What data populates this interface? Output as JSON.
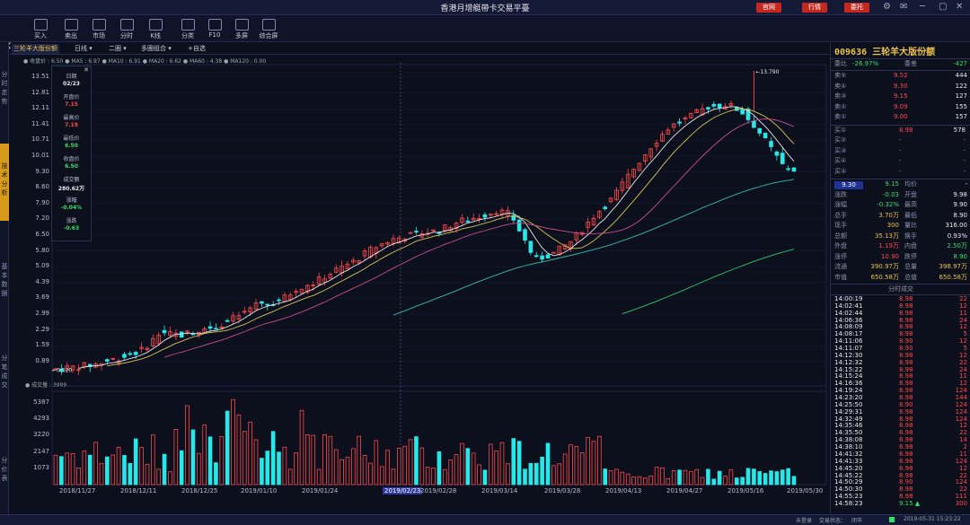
{
  "window": {
    "title": "香港月增艇帶卡交易平臺",
    "btn_website": "官网",
    "btn_market": "行情",
    "btn_trade": "委托"
  },
  "toolbar": [
    {
      "label": "买入",
      "icon": "buy-house-icon"
    },
    {
      "label": "卖出",
      "icon": "sell-house-icon"
    },
    {
      "label": "市场",
      "icon": "market-bag-icon"
    },
    {
      "label": "分时",
      "icon": "timeline-icon"
    },
    {
      "label": "K线",
      "icon": "candlestick-icon"
    },
    {
      "label": "分类",
      "icon": "list-icon"
    },
    {
      "label": "F10",
      "icon": "document-icon"
    },
    {
      "label": "多屏",
      "icon": "multi-screen-icon"
    },
    {
      "label": "综合屏",
      "icon": "grid-icon"
    }
  ],
  "left_nav": [
    "分时走势",
    "技术分析",
    "基本数据",
    "分笔成交",
    "分价表"
  ],
  "tabs": {
    "stock": "三轮羊大版份额",
    "period": "日线",
    "layout": "二圈",
    "multi": "多圈组合",
    "add": "+自选"
  },
  "ma_bar": "● 收盘价 : 6.50 ● MA5 : 6.97 ● MA10 : 6.91 ● MA20 : 6.62 ● MA60 : 4.38 ● MA120 : 0.00",
  "vol_label": "● 成交量 : 3989",
  "price_axis": [
    "13.51",
    "12.81",
    "12.11",
    "11.41",
    "10.71",
    "10.01",
    "9.30",
    "8.60",
    "7.90",
    "7.20",
    "6.50",
    "5.80",
    "5.09",
    "4.39",
    "3.69",
    "2.99",
    "2.29",
    "1.59",
    "0.89"
  ],
  "vol_axis": [
    "5387",
    "4293",
    "3220",
    "2147",
    "1073"
  ],
  "dates": [
    "2018/11/27",
    "2018/12/11",
    "2018/12/25",
    "2019/01/10",
    "2019/01/24",
    "2019/02/23",
    "2019/02/28",
    "2019/03/14",
    "2019/03/28",
    "2019/04/13",
    "2019/04/27",
    "2019/05/16",
    "2019/05/30"
  ],
  "highlight_date": "2019/02/23",
  "high_label": "←13.790",
  "low_label": "←0.520",
  "tooltip": {
    "rows": [
      {
        "k": "日期",
        "v": "02/23",
        "color": "#e8eaf2"
      },
      {
        "k": "开盘价",
        "v": "7.15",
        "color": "#ff4a4a"
      },
      {
        "k": "最高价",
        "v": "7.19",
        "color": "#ff4a4a"
      },
      {
        "k": "最低价",
        "v": "6.50",
        "color": "#33e06a"
      },
      {
        "k": "收盘价",
        "v": "6.50",
        "color": "#33e06a"
      },
      {
        "k": "成交额",
        "v": "280.62万",
        "color": "#e8eaf2"
      },
      {
        "k": "涨幅",
        "v": "-0.04%",
        "color": "#33e06a"
      },
      {
        "k": "涨跌",
        "v": "-0.63",
        "color": "#33e06a"
      }
    ]
  },
  "quote": {
    "code_name": "009636 三轮羊大版份额",
    "ratio_label": "委比",
    "ratio_val": "-26.97%",
    "diff_label": "委差",
    "diff_val": "-427",
    "asks": [
      {
        "l": "卖⑤",
        "p": "9.52",
        "v": "444"
      },
      {
        "l": "卖④",
        "p": "9.30",
        "v": "122"
      },
      {
        "l": "卖③",
        "p": "9.15",
        "v": "127"
      },
      {
        "l": "卖②",
        "p": "9.09",
        "v": "155"
      },
      {
        "l": "卖①",
        "p": "9.00",
        "v": "157"
      }
    ],
    "bids": [
      {
        "l": "买①",
        "p": "8.98",
        "v": "578"
      },
      {
        "l": "买②",
        "p": "-",
        "v": "-"
      },
      {
        "l": "买③",
        "p": "-",
        "v": "-"
      },
      {
        "l": "买④",
        "p": "-",
        "v": "-"
      },
      {
        "l": "买⑤",
        "p": "-",
        "v": "-"
      }
    ],
    "price_box": "9.30",
    "stats": [
      {
        "l1": "",
        "v1": "9.15",
        "c1": "grn",
        "l2": "均价",
        "v2": "-",
        "c2": "wht"
      },
      {
        "l1": "涨跌",
        "v1": "-0.03",
        "c1": "grn",
        "l2": "开盘",
        "v2": "9.98",
        "c2": "wht"
      },
      {
        "l1": "涨幅",
        "v1": "-0.32%",
        "c1": "grn",
        "l2": "最高",
        "v2": "9.90",
        "c2": "wht"
      },
      {
        "l1": "总手",
        "v1": "3.70万",
        "c1": "yel",
        "l2": "最低",
        "v2": "8.90",
        "c2": "wht"
      },
      {
        "l1": "现手",
        "v1": "300",
        "c1": "yel",
        "l2": "量比",
        "v2": "316.00",
        "c2": "wht"
      },
      {
        "l1": "总额",
        "v1": "35.13万",
        "c1": "yel",
        "l2": "换手",
        "v2": "0.93%",
        "c2": "wht"
      },
      {
        "l1": "外盘",
        "v1": "1.19万",
        "c1": "red",
        "l2": "内盘",
        "v2": "2.50万",
        "c2": "grn"
      },
      {
        "l1": "涨停",
        "v1": "10.90",
        "c1": "red",
        "l2": "跌停",
        "v2": "8.90",
        "c2": "grn"
      },
      {
        "l1": "流通",
        "v1": "390.97万",
        "c1": "yel",
        "l2": "总量",
        "v2": "398.97万",
        "c2": "yel"
      },
      {
        "l1": "市值",
        "v1": "650.58万",
        "c1": "yel",
        "l2": "总值",
        "v2": "650.58万",
        "c2": "yel"
      }
    ]
  },
  "ticks_title": "分时成交",
  "ticks": [
    [
      "14:00:19",
      "8.98",
      "22"
    ],
    [
      "14:02:41",
      "8.98",
      "12"
    ],
    [
      "14:02:44",
      "8.98",
      "11"
    ],
    [
      "14:06:36",
      "8.98",
      "24"
    ],
    [
      "14:08:09",
      "8.98",
      "12"
    ],
    [
      "14:08:17",
      "8.98",
      "5"
    ],
    [
      "14:11:06",
      "8.90",
      "12"
    ],
    [
      "14:11:07",
      "8.90",
      "5"
    ],
    [
      "14:12:30",
      "8.98",
      "12"
    ],
    [
      "14:12:32",
      "8.98",
      "22"
    ],
    [
      "14:15:22",
      "8.98",
      "24"
    ],
    [
      "14:15:24",
      "8.98",
      "11"
    ],
    [
      "14:16:36",
      "8.98",
      "12"
    ],
    [
      "14:19:24",
      "8.98",
      "124"
    ],
    [
      "14:23:20",
      "8.98",
      "144"
    ],
    [
      "14:25:50",
      "8.90",
      "124"
    ],
    [
      "14:29:31",
      "8.98",
      "124"
    ],
    [
      "14:32:49",
      "8.98",
      "124"
    ],
    [
      "14:35:46",
      "8.98",
      "12"
    ],
    [
      "14:35:50",
      "8.98",
      "22"
    ],
    [
      "14:38:08",
      "8.98",
      "14"
    ],
    [
      "14:38:10",
      "8.98",
      "2"
    ],
    [
      "14:41:32",
      "8.98",
      "11"
    ],
    [
      "14:41:33",
      "8.98",
      "124"
    ],
    [
      "14:45:20",
      "8.98",
      "12"
    ],
    [
      "14:45:22",
      "8.98",
      "22"
    ],
    [
      "14:50:29",
      "8.90",
      "124"
    ],
    [
      "14:50:30",
      "8.98",
      "22"
    ],
    [
      "14:55:23",
      "8.98",
      "111"
    ],
    [
      "14:58:23",
      "9.15 ▲",
      "300"
    ]
  ],
  "status": {
    "login": "未登录",
    "conn": "交易状态：",
    "market": "闭市",
    "datetime": "2019-05-31 15:23:22"
  },
  "colors": {
    "up": "#ff4a4a",
    "down": "#26e8e8",
    "ma5": "#e8e8e8",
    "ma10": "#d6c45a",
    "ma20": "#c84f8f",
    "ma60": "#2fbcb0",
    "ma120": "#27c96a"
  },
  "chart_data": {
    "type": "candlestick",
    "price_range": [
      0.52,
      13.79
    ],
    "candles": [],
    "volume": []
  }
}
